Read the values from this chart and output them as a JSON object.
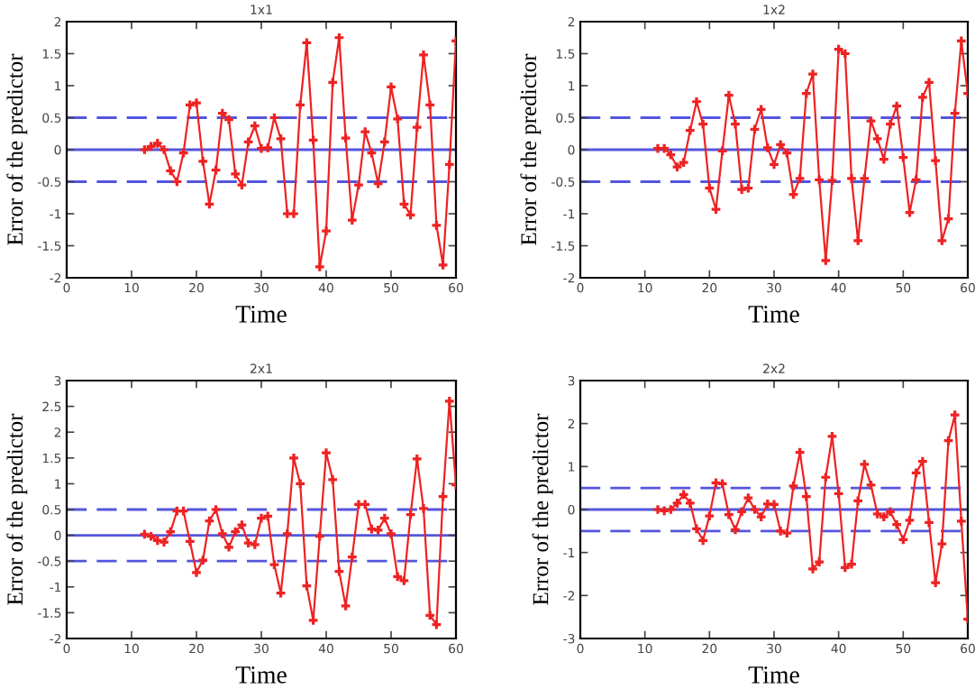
{
  "chart_data": [
    {
      "type": "line",
      "title": "1x1",
      "xlabel": "Time",
      "ylabel": "Error of the predictor",
      "xlim": [
        0,
        60
      ],
      "xticks": [
        0,
        10,
        20,
        30,
        40,
        50,
        60
      ],
      "ylim": [
        -2,
        2
      ],
      "yticks": [
        -2,
        -1.5,
        -1,
        -0.5,
        0,
        0.5,
        1,
        1.5,
        2
      ],
      "grid": false,
      "marker": "cross",
      "line_style": "solid",
      "x": [
        12,
        13,
        14,
        15,
        16,
        17,
        18,
        19,
        20,
        21,
        22,
        23,
        24,
        25,
        26,
        27,
        28,
        29,
        30,
        31,
        32,
        33,
        34,
        35,
        36,
        37,
        38,
        39,
        40,
        41,
        42,
        43,
        44,
        45,
        46,
        47,
        48,
        49,
        50,
        51,
        52,
        53,
        54,
        55,
        56,
        57,
        58,
        59,
        60
      ],
      "series": [
        {
          "color": "#ee2222",
          "values": [
            0.0,
            0.05,
            0.1,
            0.0,
            -0.33,
            -0.5,
            -0.05,
            0.7,
            0.73,
            -0.18,
            -0.85,
            -0.32,
            0.57,
            0.47,
            -0.38,
            -0.55,
            0.12,
            0.37,
            0.02,
            0.03,
            0.5,
            0.17,
            -1.0,
            -1.0,
            0.7,
            1.67,
            0.15,
            -1.83,
            -1.27,
            1.05,
            1.75,
            0.18,
            -1.1,
            -0.55,
            0.28,
            -0.05,
            -0.53,
            0.12,
            0.98,
            0.48,
            -0.85,
            -1.02,
            0.35,
            1.48,
            0.7,
            -1.18,
            -1.8,
            -0.23,
            1.7
          ]
        }
      ],
      "ref_lines": [
        {
          "axis": "y",
          "value": 0.5,
          "color": "#5555dd",
          "line_style": "dashed"
        },
        {
          "axis": "y",
          "value": 0,
          "color": "#5555dd",
          "line_style": "solid"
        },
        {
          "axis": "y",
          "value": -0.5,
          "color": "#5555dd",
          "line_style": "dashed"
        }
      ]
    },
    {
      "type": "line",
      "title": "1x2",
      "xlabel": "Time",
      "ylabel": "Error of the predictor",
      "xlim": [
        0,
        60
      ],
      "xticks": [
        0,
        10,
        20,
        30,
        40,
        50,
        60
      ],
      "ylim": [
        -2,
        2
      ],
      "yticks": [
        -2,
        -1.5,
        -1,
        -0.5,
        0,
        0.5,
        1,
        1.5,
        2
      ],
      "grid": false,
      "marker": "cross",
      "line_style": "solid",
      "x": [
        12,
        13,
        14,
        15,
        16,
        17,
        18,
        19,
        20,
        21,
        22,
        23,
        24,
        25,
        26,
        27,
        28,
        29,
        30,
        31,
        32,
        33,
        34,
        35,
        36,
        37,
        38,
        39,
        40,
        41,
        42,
        43,
        44,
        45,
        46,
        47,
        48,
        49,
        50,
        51,
        52,
        53,
        54,
        55,
        56,
        57,
        58,
        59,
        60
      ],
      "series": [
        {
          "color": "#ee2222",
          "values": [
            0.02,
            0.02,
            -0.08,
            -0.27,
            -0.2,
            0.3,
            0.75,
            0.4,
            -0.6,
            -0.93,
            -0.02,
            0.85,
            0.4,
            -0.62,
            -0.6,
            0.32,
            0.63,
            0.03,
            -0.23,
            0.08,
            -0.05,
            -0.7,
            -0.45,
            0.88,
            1.18,
            -0.47,
            -1.73,
            -0.48,
            1.57,
            1.5,
            -0.45,
            -1.42,
            -0.45,
            0.45,
            0.17,
            -0.15,
            0.4,
            0.68,
            -0.12,
            -0.98,
            -0.47,
            0.82,
            1.05,
            -0.17,
            -1.42,
            -1.08,
            0.57,
            1.7,
            0.88
          ]
        }
      ],
      "ref_lines": [
        {
          "axis": "y",
          "value": 0.5,
          "color": "#5555dd",
          "line_style": "dashed"
        },
        {
          "axis": "y",
          "value": 0,
          "color": "#5555dd",
          "line_style": "solid"
        },
        {
          "axis": "y",
          "value": -0.5,
          "color": "#5555dd",
          "line_style": "dashed"
        }
      ]
    },
    {
      "type": "line",
      "title": "2x1",
      "xlabel": "Time",
      "ylabel": "Error of the predictor",
      "xlim": [
        0,
        60
      ],
      "xticks": [
        0,
        10,
        20,
        30,
        40,
        50,
        60
      ],
      "ylim": [
        -2,
        3
      ],
      "yticks": [
        -2,
        -1.5,
        -1,
        -0.5,
        0,
        0.5,
        1,
        1.5,
        2,
        2.5,
        3
      ],
      "grid": false,
      "marker": "cross",
      "line_style": "solid",
      "x": [
        12,
        13,
        14,
        15,
        16,
        17,
        18,
        19,
        20,
        21,
        22,
        23,
        24,
        25,
        26,
        27,
        28,
        29,
        30,
        31,
        32,
        33,
        34,
        35,
        36,
        37,
        38,
        39,
        40,
        41,
        42,
        43,
        44,
        45,
        46,
        47,
        48,
        49,
        50,
        51,
        52,
        53,
        54,
        55,
        56,
        57,
        58,
        59,
        60
      ],
      "series": [
        {
          "color": "#ee2222",
          "values": [
            0.02,
            -0.02,
            -0.1,
            -0.13,
            0.07,
            0.47,
            0.47,
            -0.12,
            -0.72,
            -0.48,
            0.28,
            0.5,
            0.03,
            -0.23,
            0.07,
            0.2,
            -0.15,
            -0.18,
            0.33,
            0.37,
            -0.57,
            -1.12,
            0.03,
            1.5,
            1.0,
            -0.98,
            -1.65,
            -0.02,
            1.6,
            1.08,
            -0.7,
            -1.37,
            -0.42,
            0.6,
            0.6,
            0.12,
            0.1,
            0.33,
            0.03,
            -0.8,
            -0.88,
            0.4,
            1.48,
            0.52,
            -1.55,
            -1.73,
            0.75,
            2.6,
            0.98
          ]
        }
      ],
      "ref_lines": [
        {
          "axis": "y",
          "value": 0.5,
          "color": "#5555dd",
          "line_style": "dashed"
        },
        {
          "axis": "y",
          "value": 0,
          "color": "#5555dd",
          "line_style": "solid"
        },
        {
          "axis": "y",
          "value": -0.5,
          "color": "#5555dd",
          "line_style": "dashed"
        }
      ]
    },
    {
      "type": "line",
      "title": "2x2",
      "xlabel": "Time",
      "ylabel": "Error of the predictor",
      "xlim": [
        0,
        60
      ],
      "xticks": [
        0,
        10,
        20,
        30,
        40,
        50,
        60
      ],
      "ylim": [
        -3,
        3
      ],
      "yticks": [
        -3,
        -2,
        -1,
        0,
        1,
        2,
        3
      ],
      "grid": false,
      "marker": "cross",
      "line_style": "solid",
      "x": [
        12,
        13,
        14,
        15,
        16,
        17,
        18,
        19,
        20,
        21,
        22,
        23,
        24,
        25,
        26,
        27,
        28,
        29,
        30,
        31,
        32,
        33,
        34,
        35,
        36,
        37,
        38,
        39,
        40,
        41,
        42,
        43,
        44,
        45,
        46,
        47,
        48,
        49,
        50,
        51,
        52,
        53,
        54,
        55,
        56,
        57,
        58,
        59,
        60
      ],
      "series": [
        {
          "color": "#ee2222",
          "values": [
            0.0,
            -0.03,
            0.0,
            0.15,
            0.35,
            0.15,
            -0.45,
            -0.72,
            -0.15,
            0.62,
            0.6,
            -0.12,
            -0.47,
            -0.05,
            0.27,
            0.0,
            -0.17,
            0.13,
            0.12,
            -0.5,
            -0.55,
            0.55,
            1.33,
            0.3,
            -1.38,
            -1.22,
            0.75,
            1.7,
            0.37,
            -1.35,
            -1.27,
            0.2,
            1.05,
            0.57,
            -0.1,
            -0.17,
            -0.05,
            -0.35,
            -0.7,
            -0.25,
            0.85,
            1.12,
            -0.3,
            -1.7,
            -0.8,
            1.6,
            2.2,
            -0.27,
            -2.55
          ]
        }
      ],
      "ref_lines": [
        {
          "axis": "y",
          "value": 0.5,
          "color": "#5555dd",
          "line_style": "dashed"
        },
        {
          "axis": "y",
          "value": 0,
          "color": "#5555dd",
          "line_style": "solid"
        },
        {
          "axis": "y",
          "value": -0.5,
          "color": "#5555dd",
          "line_style": "dashed"
        }
      ]
    }
  ]
}
